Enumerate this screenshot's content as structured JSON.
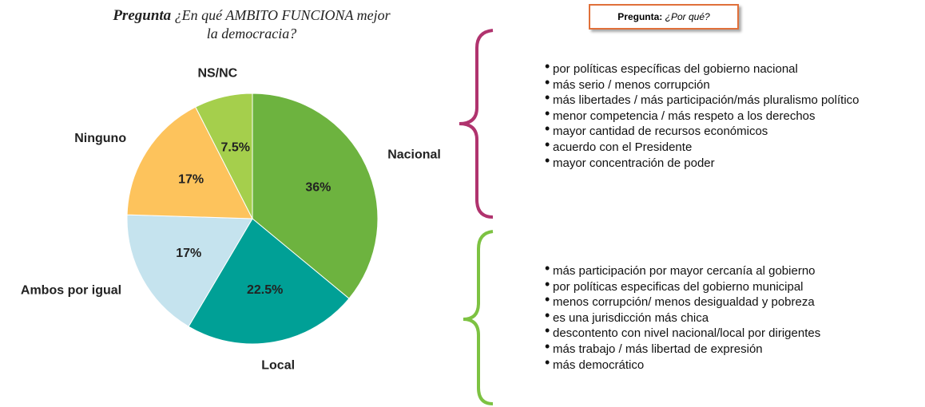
{
  "chart_data": {
    "type": "pie",
    "title_lead": "Pregunta",
    "title": "¿En qué AMBITO FUNCIONA mejor la democracia?",
    "categories": [
      "Nacional",
      "Local",
      "Ambos por igual",
      "Ninguno",
      "NS/NC"
    ],
    "values": [
      36,
      22.5,
      17,
      17,
      7.5
    ],
    "value_labels": [
      "36%",
      "22.5%",
      "17%",
      "17%",
      "7.5%"
    ],
    "colors": [
      "#6db33f",
      "#00a096",
      "#c5e3ee",
      "#fdc35c",
      "#a5cf4c"
    ]
  },
  "reasons_box": {
    "lead": "Pregunta:",
    "text": "¿Por qué?"
  },
  "nacional_reasons": [
    "por políticas específicas del gobierno nacional",
    "más serio / menos corrupción",
    "más libertades / más participación/más pluralismo político",
    "menor competencia / más respeto a los derechos",
    "mayor cantidad de recursos económicos",
    "acuerdo con el Presidente",
    "mayor concentración de poder"
  ],
  "local_reasons": [
    "más participación por mayor cercanía al gobierno",
    "por políticas especificas del gobierno municipal",
    "menos corrupción/ menos desigualdad y pobreza",
    "es una jurisdicción más chica",
    "descontento con nivel nacional/local por dirigentes",
    "más trabajo / más libertad de expresión",
    "más democrático"
  ]
}
